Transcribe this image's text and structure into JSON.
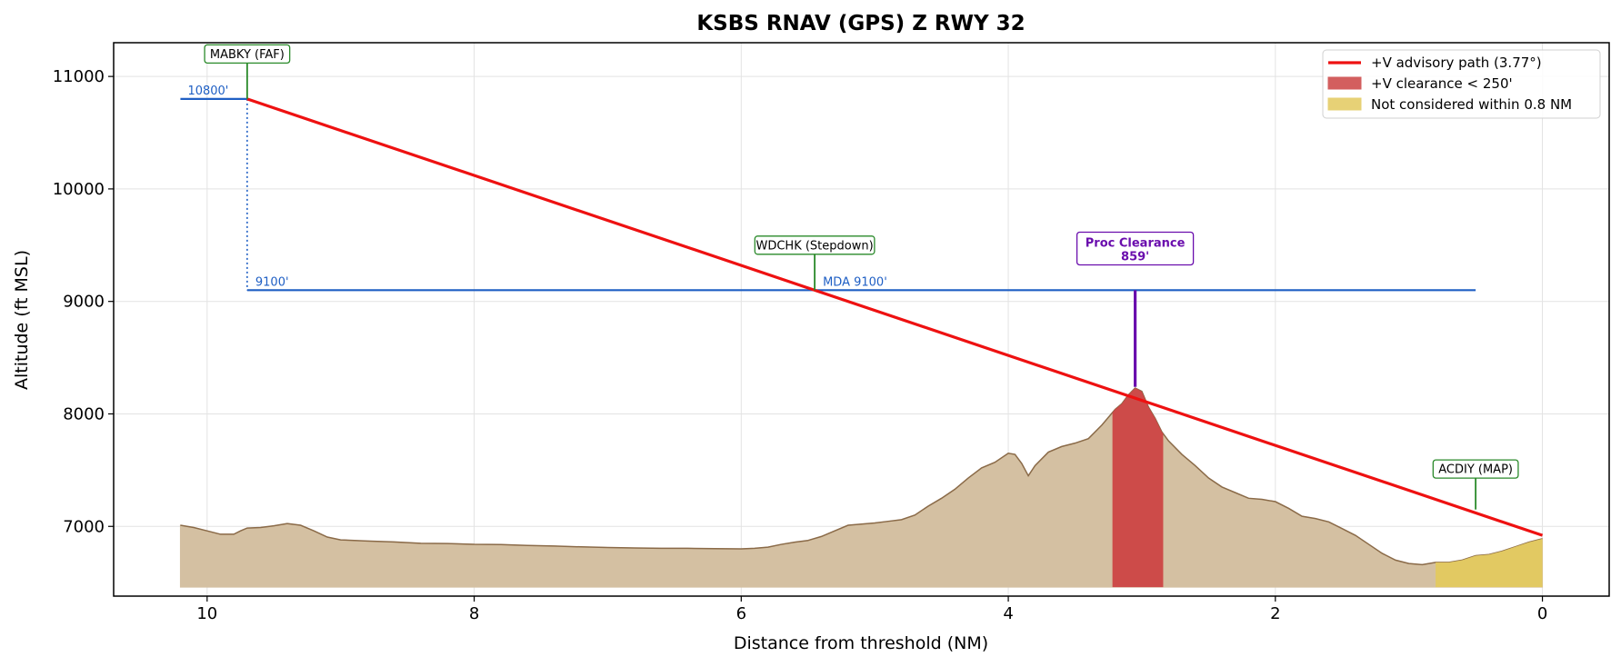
{
  "chart_data": {
    "type": "area",
    "title": "KSBS  RNAV (GPS) Z RWY 32",
    "xlabel": "Distance from threshold (NM)",
    "ylabel": "Altitude (ft MSL)",
    "xlim": [
      10.7,
      -0.5
    ],
    "ylim": [
      6380,
      11300
    ],
    "x_inverted": true,
    "grid": true,
    "legend_position": "top-right",
    "xticks": [
      10,
      8,
      6,
      4,
      2,
      0
    ],
    "yticks": [
      7000,
      8000,
      9000,
      10000,
      11000
    ],
    "terrain": {
      "base": 6460,
      "points": [
        [
          10.2,
          7010
        ],
        [
          10.1,
          6990
        ],
        [
          10.0,
          6960
        ],
        [
          9.9,
          6930
        ],
        [
          9.8,
          6930
        ],
        [
          9.75,
          6960
        ],
        [
          9.7,
          6985
        ],
        [
          9.6,
          6990
        ],
        [
          9.5,
          7005
        ],
        [
          9.4,
          7025
        ],
        [
          9.3,
          7010
        ],
        [
          9.2,
          6960
        ],
        [
          9.1,
          6905
        ],
        [
          9.0,
          6880
        ],
        [
          8.8,
          6870
        ],
        [
          8.6,
          6862
        ],
        [
          8.4,
          6850
        ],
        [
          8.2,
          6848
        ],
        [
          8.0,
          6840
        ],
        [
          7.8,
          6838
        ],
        [
          7.6,
          6830
        ],
        [
          7.4,
          6825
        ],
        [
          7.2,
          6818
        ],
        [
          7.0,
          6812
        ],
        [
          6.8,
          6808
        ],
        [
          6.6,
          6805
        ],
        [
          6.4,
          6805
        ],
        [
          6.2,
          6802
        ],
        [
          6.0,
          6800
        ],
        [
          5.9,
          6805
        ],
        [
          5.8,
          6815
        ],
        [
          5.7,
          6840
        ],
        [
          5.6,
          6860
        ],
        [
          5.5,
          6875
        ],
        [
          5.4,
          6910
        ],
        [
          5.3,
          6960
        ],
        [
          5.2,
          7010
        ],
        [
          5.1,
          7020
        ],
        [
          5.0,
          7030
        ],
        [
          4.9,
          7045
        ],
        [
          4.8,
          7060
        ],
        [
          4.7,
          7100
        ],
        [
          4.6,
          7180
        ],
        [
          4.5,
          7250
        ],
        [
          4.4,
          7330
        ],
        [
          4.3,
          7430
        ],
        [
          4.2,
          7520
        ],
        [
          4.1,
          7570
        ],
        [
          4.0,
          7650
        ],
        [
          3.95,
          7640
        ],
        [
          3.9,
          7560
        ],
        [
          3.85,
          7450
        ],
        [
          3.8,
          7540
        ],
        [
          3.7,
          7660
        ],
        [
          3.6,
          7710
        ],
        [
          3.5,
          7740
        ],
        [
          3.4,
          7780
        ],
        [
          3.3,
          7900
        ],
        [
          3.2,
          8040
        ],
        [
          3.15,
          8090
        ],
        [
          3.1,
          8170
        ],
        [
          3.05,
          8230
        ],
        [
          3.0,
          8200
        ],
        [
          2.95,
          8060
        ],
        [
          2.9,
          7960
        ],
        [
          2.85,
          7840
        ],
        [
          2.8,
          7760
        ],
        [
          2.7,
          7640
        ],
        [
          2.6,
          7540
        ],
        [
          2.5,
          7430
        ],
        [
          2.4,
          7350
        ],
        [
          2.3,
          7300
        ],
        [
          2.2,
          7250
        ],
        [
          2.1,
          7240
        ],
        [
          2.0,
          7220
        ],
        [
          1.9,
          7160
        ],
        [
          1.8,
          7090
        ],
        [
          1.7,
          7070
        ],
        [
          1.6,
          7040
        ],
        [
          1.5,
          6980
        ],
        [
          1.4,
          6920
        ],
        [
          1.3,
          6840
        ],
        [
          1.2,
          6760
        ],
        [
          1.1,
          6700
        ],
        [
          1.0,
          6670
        ],
        [
          0.9,
          6660
        ],
        [
          0.8,
          6680
        ],
        [
          0.7,
          6680
        ],
        [
          0.6,
          6700
        ],
        [
          0.5,
          6740
        ],
        [
          0.4,
          6750
        ],
        [
          0.3,
          6780
        ],
        [
          0.2,
          6820
        ],
        [
          0.1,
          6860
        ],
        [
          0.0,
          6890
        ]
      ]
    },
    "series": [
      {
        "name": "+V advisory path (3.77°)",
        "type": "line",
        "color": "#ee1111",
        "x": [
          9.7,
          0.0
        ],
        "y": [
          10800,
          6920
        ]
      },
      {
        "name": "+V clearance < 250'",
        "type": "band",
        "color": "#cc4444",
        "x_range": [
          3.22,
          2.84
        ]
      },
      {
        "name": "Not considered within 0.8 NM",
        "type": "band",
        "color": "#e3c95f",
        "x_range": [
          0.8,
          0.0
        ]
      }
    ],
    "minimums": {
      "color": "#1f5fc4",
      "faf_segment": {
        "x": [
          10.2,
          9.7
        ],
        "y": 10800,
        "label": "10800'"
      },
      "step_drop": {
        "x": 9.7,
        "y": [
          10800,
          9100
        ]
      },
      "mda_segment": {
        "x": [
          9.7,
          0.5
        ],
        "y": 9100,
        "label_start": "9100'",
        "label_mda": "MDA 9100'",
        "label_mda_x": 5.45
      }
    },
    "waypoints": [
      {
        "name": "MABKY (FAF)",
        "x": 9.7,
        "y_tip": 10800,
        "y_box": 11200
      },
      {
        "name": "WDCHK (Stepdown)",
        "x": 5.45,
        "y_tip": 9100,
        "y_box": 9500
      },
      {
        "name": "ACDIY (MAP)",
        "x": 0.5,
        "y_tip": 7150,
        "y_box": 7510
      }
    ],
    "proc_clearance": {
      "label": "Proc Clearance",
      "value": "859'",
      "color": "#6a0dad",
      "x": 3.05,
      "y_from": 8240,
      "y_to": 9100,
      "y_box": 9470
    }
  }
}
